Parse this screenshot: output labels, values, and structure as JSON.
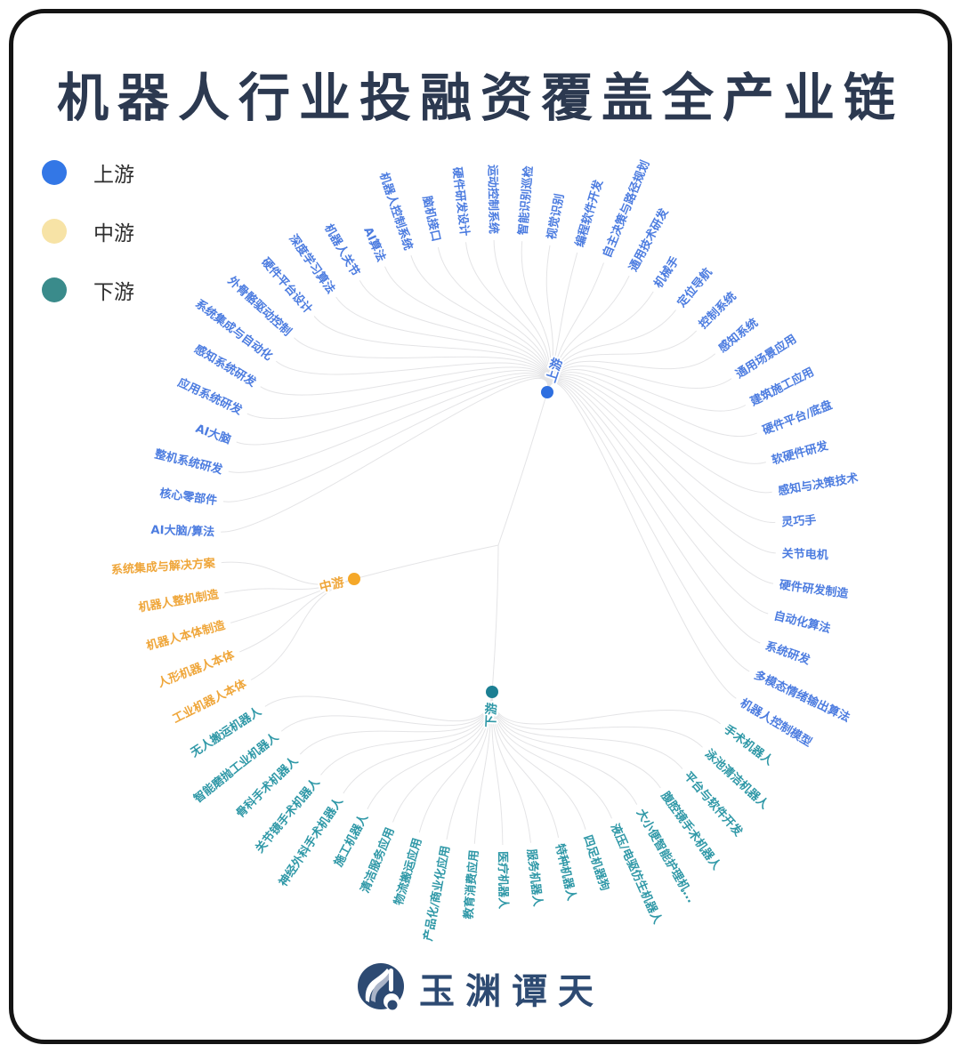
{
  "title": "机器人行业投融资覆盖全产业链",
  "legend": [
    {
      "label": "上游",
      "color": "#3377e6"
    },
    {
      "label": "中游",
      "color": "#f7e3a6"
    },
    {
      "label": "下游",
      "color": "#3a8b8b"
    }
  ],
  "logo": {
    "text": "玉渊谭天",
    "color": "#2d4a72"
  },
  "chart_data": {
    "type": "radial-tree",
    "note": "three hub nodes (上游/中游/下游) fan out to leaf labels arranged clockwise around a circle starting at west",
    "link_color": "#e4e4e6",
    "groups": [
      {
        "name": "上游",
        "text_color": "#4c7ce0",
        "dot_color": "#2e6fe0",
        "leaves": [
          "AI大脑/算法",
          "核心零部件",
          "整机系统研发",
          "AI大脑",
          "应用系统研发",
          "感知系统研发",
          "系统集成与自动化",
          "外骨骼驱动控制",
          "硬件平台设计",
          "深度学习算法",
          "机器人关节",
          "AI算法",
          "机器人控制系统",
          "脑机接口",
          "硬件研发设计",
          "运动控制系统",
          "智能识别巡检",
          "视觉识别",
          "编程软件开发",
          "自主决策与路径规划",
          "通用技术研发",
          "机械手",
          "定位导航",
          "控制系统",
          "感知系统",
          "通用场景应用",
          "建筑施工应用",
          "硬件平台/底盘",
          "软硬件研发",
          "感知与决策技术",
          "灵巧手",
          "关节电机",
          "硬件研发制造",
          "自动化算法",
          "系统研发",
          "多模态情绪输出算法",
          "机器人控制模型"
        ]
      },
      {
        "name": "下游",
        "text_color": "#2f98a7",
        "dot_color": "#1c7f93",
        "leaves": [
          "手术机器人",
          "泳池清洁机器人",
          "平台与软件开发",
          "腹腔镜手术机器人",
          "大小便智能护理机...",
          "液压/电驱仿生机器人",
          "四足机器狗",
          "特种机器人",
          "服务机器人",
          "医疗机器人",
          "教育消费应用",
          "产品化/商业化应用",
          "物流搬运应用",
          "清洁服务应用",
          "施工机器人",
          "神经外科手术机器人",
          "关节镜手术机器人",
          "骨科手术机器人",
          "智能磨抛工业机器人",
          "无人搬运机器人"
        ]
      },
      {
        "name": "中游",
        "text_color": "#efa63a",
        "dot_color": "#f5a829",
        "leaves": [
          "工业机器人本体",
          "人形机器人本体",
          "机器人本体制造",
          "机器人整机制造",
          "系统集成与解决方案"
        ]
      }
    ]
  }
}
